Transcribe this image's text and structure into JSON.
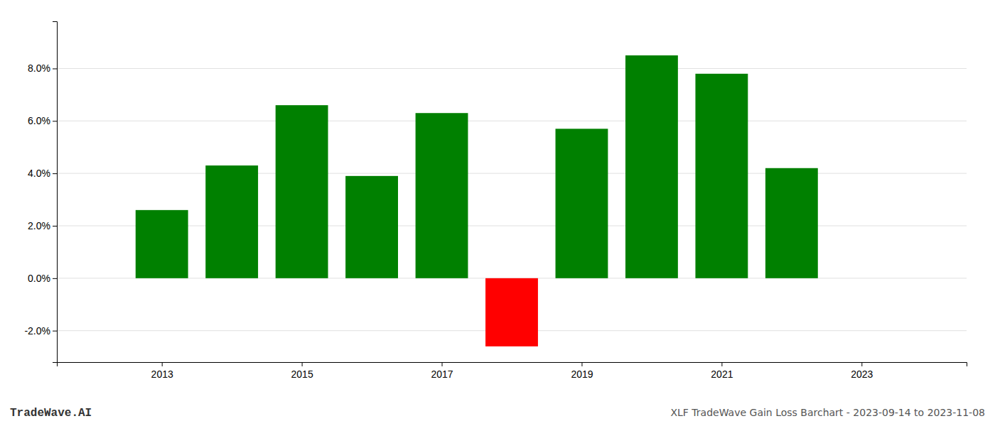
{
  "chart_data": {
    "type": "bar",
    "title": "XLF TradeWave Gain Loss Barchart - 2023-09-14 to 2023-11-08",
    "annotations": [
      "TradeWave.AI"
    ],
    "x": [
      2013,
      2014,
      2015,
      2016,
      2017,
      2018,
      2019,
      2020,
      2021,
      2022
    ],
    "values": [
      0.026,
      0.043,
      0.066,
      0.039,
      0.063,
      -0.026,
      0.057,
      0.085,
      0.078,
      0.042
    ],
    "colors": [
      "#008000",
      "#008000",
      "#008000",
      "#008000",
      "#008000",
      "#ff0000",
      "#008000",
      "#008000",
      "#008000",
      "#008000"
    ],
    "xlim": [
      2011.5,
      2024.5
    ],
    "xticks": [
      2013,
      2015,
      2017,
      2019,
      2021,
      2023
    ],
    "ylim": [
      -0.032,
      0.098
    ],
    "yticks": [
      {
        "value": -0.02,
        "label": "-2.0%"
      },
      {
        "value": 0.0,
        "label": "0.0%"
      },
      {
        "value": 0.02,
        "label": "2.0%"
      },
      {
        "value": 0.04,
        "label": "4.0%"
      },
      {
        "value": 0.06,
        "label": "6.0%"
      },
      {
        "value": 0.08,
        "label": "8.0%"
      }
    ],
    "grid": true
  }
}
